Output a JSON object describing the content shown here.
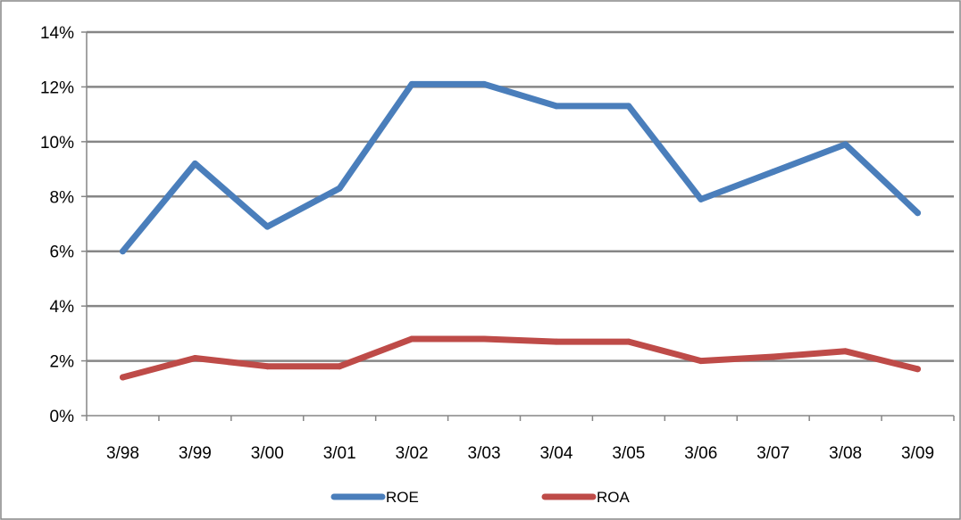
{
  "chart_data": {
    "type": "line",
    "categories": [
      "3/98",
      "3/99",
      "3/00",
      "3/01",
      "3/02",
      "3/03",
      "3/04",
      "3/05",
      "3/06",
      "3/07",
      "3/08",
      "3/09"
    ],
    "series": [
      {
        "name": "ROE",
        "color": "#4a7ebb",
        "values": [
          6.0,
          9.2,
          6.9,
          8.3,
          12.1,
          12.1,
          11.3,
          11.3,
          7.9,
          8.9,
          9.9,
          7.4
        ]
      },
      {
        "name": "ROA",
        "color": "#be4b48",
        "values": [
          1.4,
          2.1,
          1.8,
          1.8,
          2.8,
          2.8,
          2.7,
          2.7,
          2.0,
          2.15,
          2.35,
          1.7
        ]
      }
    ],
    "ylim": [
      0,
      14
    ],
    "y_ticks": [
      "0%",
      "2%",
      "4%",
      "6%",
      "8%",
      "10%",
      "12%",
      "14%"
    ],
    "y_tick_values": [
      0,
      2,
      4,
      6,
      8,
      10,
      12,
      14
    ],
    "grid": true,
    "legend_position": "bottom"
  }
}
